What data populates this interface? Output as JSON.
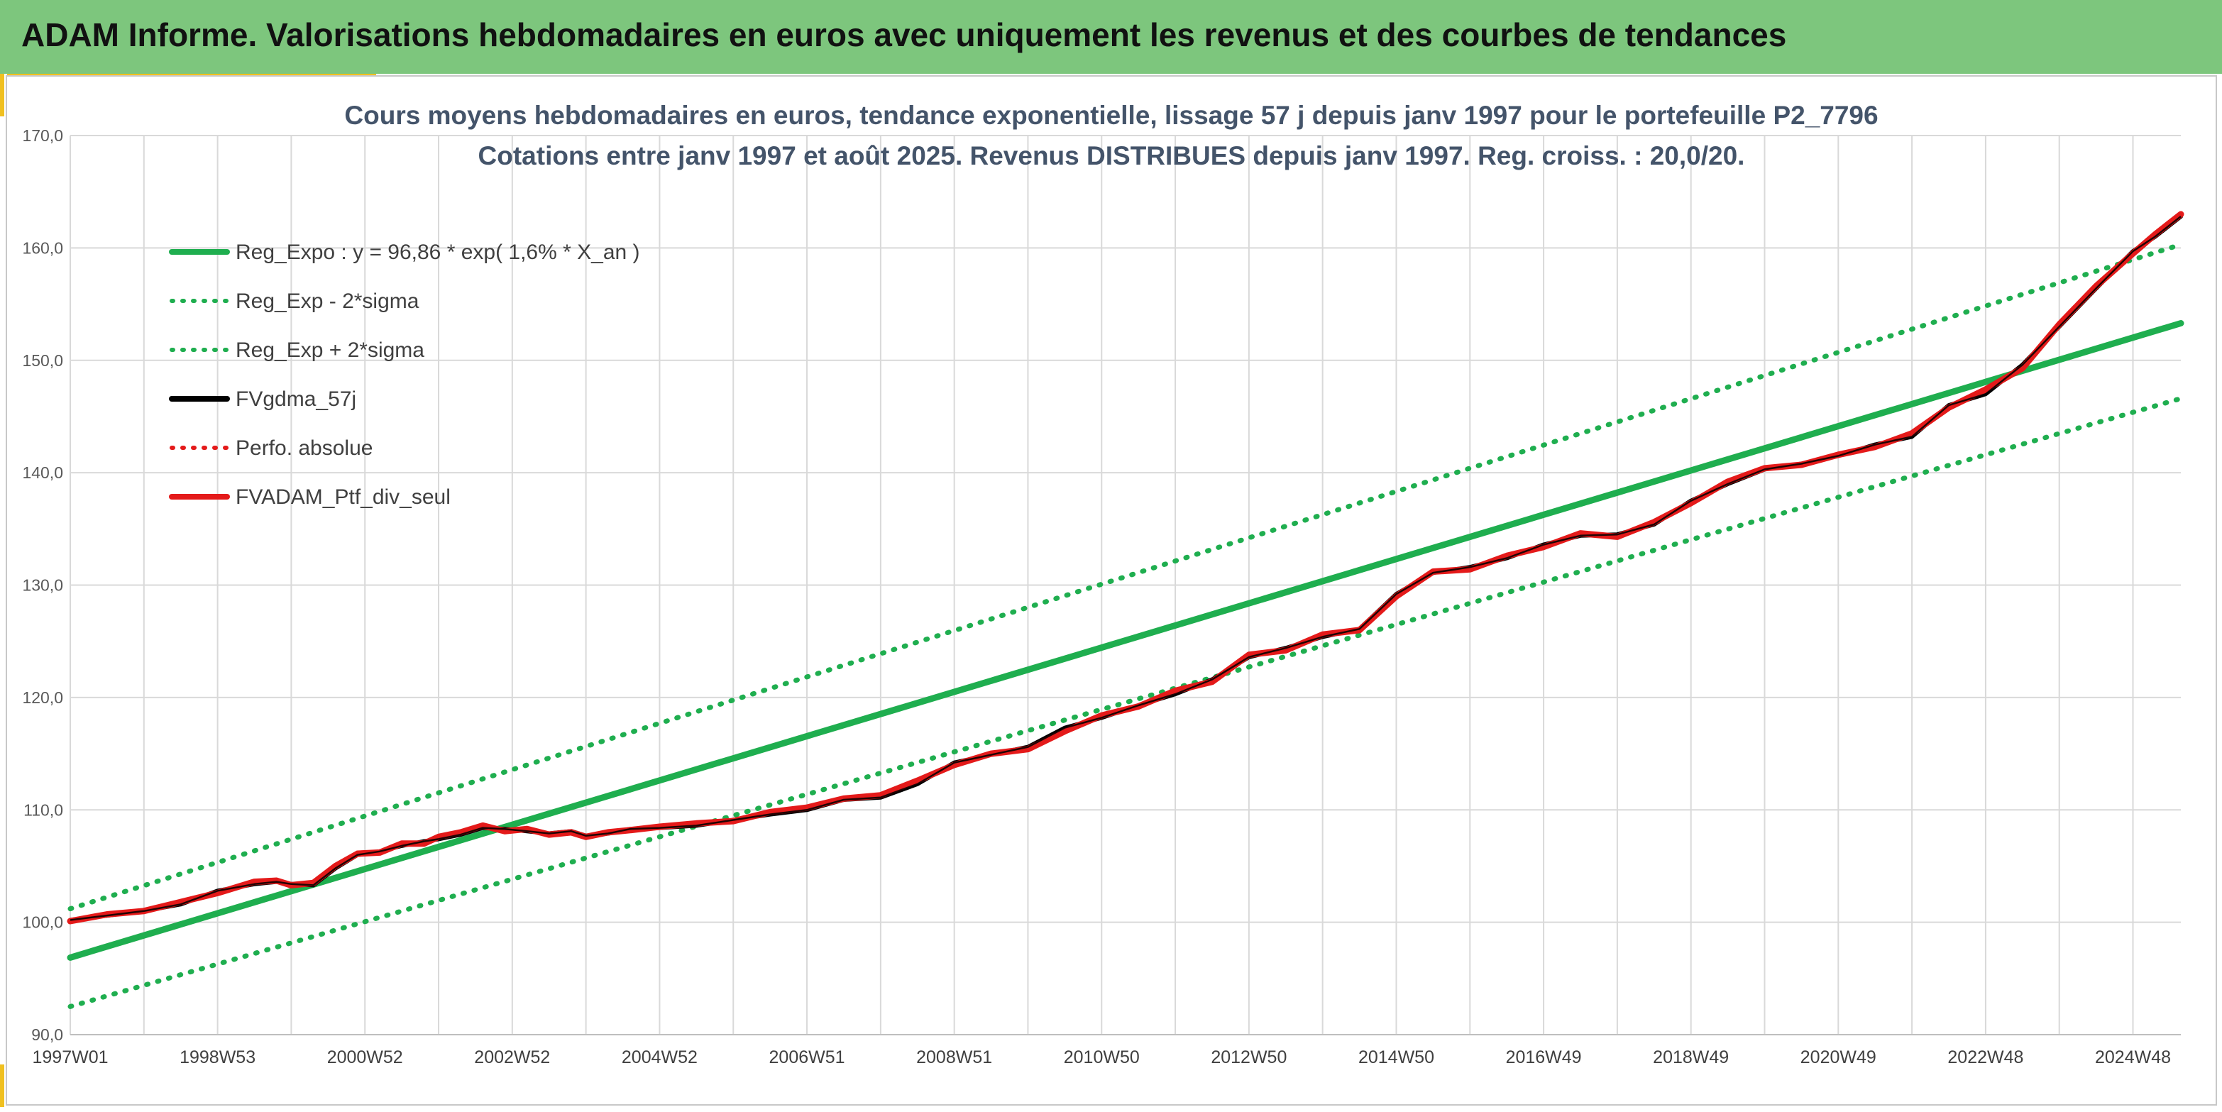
{
  "header": {
    "title": "ADAM Informe. Valorisations hebdomadaires en euros avec uniquement les revenus et des courbes de tendances"
  },
  "colors": {
    "banner": "#7dc67d",
    "accent": "#f0c020",
    "trend": "#1fae4f",
    "portfolio": "#e41a1a",
    "smoothing": "#000000",
    "title_text": "#44546a"
  },
  "chart_data": {
    "type": "line",
    "title": "Cours moyens hebdomadaires en euros, tendance exponentielle, lissage 57 j depuis janv 1997 pour le portefeuille P2_7796",
    "subtitle": "Cotations entre janv 1997 et août 2025. Revenus DISTRIBUES depuis janv 1997. Reg. croiss. : 20,0/20.",
    "ylim": [
      90,
      170
    ],
    "yticks": [
      "170,0",
      "160,0",
      "150,0",
      "140,0",
      "130,0",
      "120,0",
      "110,0",
      "100,0",
      "90,0"
    ],
    "ytick_values": [
      170,
      160,
      150,
      140,
      130,
      120,
      110,
      100,
      90
    ],
    "xlim": [
      1997.0,
      2025.65
    ],
    "xticks": [
      "1997W01",
      "1998W53",
      "2000W52",
      "2002W52",
      "2004W52",
      "2006W51",
      "2008W51",
      "2010W50",
      "2012W50",
      "2014W50",
      "2016W49",
      "2018W49",
      "2020W49",
      "2022W48",
      "2024W48"
    ],
    "xtick_values": [
      1997.0,
      1999.0,
      2001.0,
      2003.0,
      2005.0,
      2007.0,
      2009.0,
      2011.0,
      2013.0,
      2015.0,
      2017.0,
      2019.0,
      2021.0,
      2023.0,
      2025.0
    ],
    "grid": true,
    "legend_position": "top-left",
    "series": [
      {
        "name": "Reg_Expo : y = 96,86 * exp( 1,6% *  X_an )",
        "style": "solid",
        "color": "#1fae4f",
        "x": [
          1997.0,
          2025.65
        ],
        "y": [
          96.86,
          153.3
        ]
      },
      {
        "name": "Reg_Exp - 2*sigma",
        "style": "dotted",
        "color": "#1fae4f",
        "x": [
          1997.0,
          2025.65
        ],
        "y": [
          92.5,
          146.6
        ]
      },
      {
        "name": "Reg_Exp + 2*sigma",
        "style": "dotted",
        "color": "#1fae4f",
        "x": [
          1997.0,
          2025.65
        ],
        "y": [
          101.2,
          160.3
        ]
      },
      {
        "name": "FVgdma_57j",
        "style": "solid",
        "color": "#000000",
        "x": [
          1997.0,
          1997.5,
          1998.0,
          1998.5,
          1999.0,
          1999.5,
          1999.8,
          2000.0,
          2000.3,
          2000.6,
          2000.9,
          2001.2,
          2001.5,
          2001.8,
          2002.0,
          2002.3,
          2002.6,
          2002.9,
          2003.2,
          2003.5,
          2003.8,
          2004.0,
          2004.3,
          2004.6,
          2005.0,
          2005.5,
          2006.0,
          2006.5,
          2007.0,
          2007.5,
          2008.0,
          2008.5,
          2009.0,
          2009.5,
          2010.0,
          2010.5,
          2011.0,
          2011.5,
          2012.0,
          2012.5,
          2013.0,
          2013.5,
          2014.0,
          2014.5,
          2015.0,
          2015.5,
          2016.0,
          2016.5,
          2017.0,
          2017.5,
          2018.0,
          2018.5,
          2019.0,
          2019.5,
          2020.0,
          2020.5,
          2021.0,
          2021.5,
          2022.0,
          2022.5,
          2023.0,
          2023.5,
          2024.0,
          2024.5,
          2025.0,
          2025.3,
          2025.65
        ],
        "y": [
          100.2,
          100.6,
          101.0,
          101.6,
          102.8,
          103.4,
          103.6,
          103.4,
          103.3,
          104.8,
          106.0,
          106.3,
          106.8,
          107.2,
          107.4,
          107.8,
          108.4,
          108.3,
          108.1,
          107.9,
          108.1,
          107.7,
          107.9,
          108.3,
          108.4,
          108.6,
          109.1,
          109.6,
          110.0,
          110.9,
          111.1,
          112.3,
          114.2,
          114.9,
          115.6,
          117.3,
          118.2,
          119.3,
          120.3,
          121.6,
          123.6,
          124.4,
          125.4,
          126.1,
          129.2,
          131.1,
          131.6,
          132.4,
          133.6,
          134.4,
          134.5,
          135.4,
          137.5,
          139.0,
          140.3,
          140.8,
          141.5,
          142.5,
          143.2,
          146.0,
          147.0,
          149.6,
          153.0,
          156.4,
          159.7,
          161.0,
          162.8
        ]
      },
      {
        "name": "Perfo. absolue",
        "style": "dotted",
        "color": "#e41a1a",
        "x": [],
        "y": []
      },
      {
        "name": "FVADAM_Ptf_div_seul",
        "style": "solid",
        "color": "#e41a1a",
        "x": [
          1997.0,
          1997.5,
          1998.0,
          1998.5,
          1999.0,
          1999.5,
          1999.8,
          2000.0,
          2000.3,
          2000.6,
          2000.9,
          2001.2,
          2001.5,
          2001.8,
          2002.0,
          2002.3,
          2002.6,
          2002.9,
          2003.2,
          2003.5,
          2003.8,
          2004.0,
          2004.3,
          2004.6,
          2005.0,
          2005.5,
          2006.0,
          2006.5,
          2007.0,
          2007.5,
          2008.0,
          2008.5,
          2009.0,
          2009.5,
          2010.0,
          2010.5,
          2011.0,
          2011.5,
          2012.0,
          2012.5,
          2013.0,
          2013.5,
          2014.0,
          2014.5,
          2015.0,
          2015.5,
          2016.0,
          2016.5,
          2017.0,
          2017.5,
          2018.0,
          2018.5,
          2019.0,
          2019.5,
          2020.0,
          2020.5,
          2021.0,
          2021.5,
          2022.0,
          2022.5,
          2023.0,
          2023.5,
          2024.0,
          2024.5,
          2025.0,
          2025.3,
          2025.65
        ],
        "y": [
          100.1,
          100.7,
          101.0,
          101.8,
          102.6,
          103.6,
          103.7,
          103.3,
          103.5,
          105.0,
          106.1,
          106.2,
          107.0,
          107.0,
          107.6,
          108.0,
          108.6,
          108.1,
          108.3,
          107.8,
          108.0,
          107.6,
          108.0,
          108.2,
          108.5,
          108.8,
          109.0,
          109.8,
          110.2,
          111.0,
          111.3,
          112.6,
          114.0,
          115.0,
          115.4,
          117.0,
          118.4,
          119.2,
          120.6,
          121.4,
          123.8,
          124.2,
          125.6,
          126.0,
          129.0,
          131.2,
          131.4,
          132.6,
          133.4,
          134.6,
          134.3,
          135.6,
          137.3,
          139.2,
          140.4,
          140.7,
          141.6,
          142.3,
          143.5,
          145.8,
          147.4,
          149.3,
          153.2,
          156.6,
          159.5,
          161.2,
          163.0
        ]
      }
    ]
  }
}
